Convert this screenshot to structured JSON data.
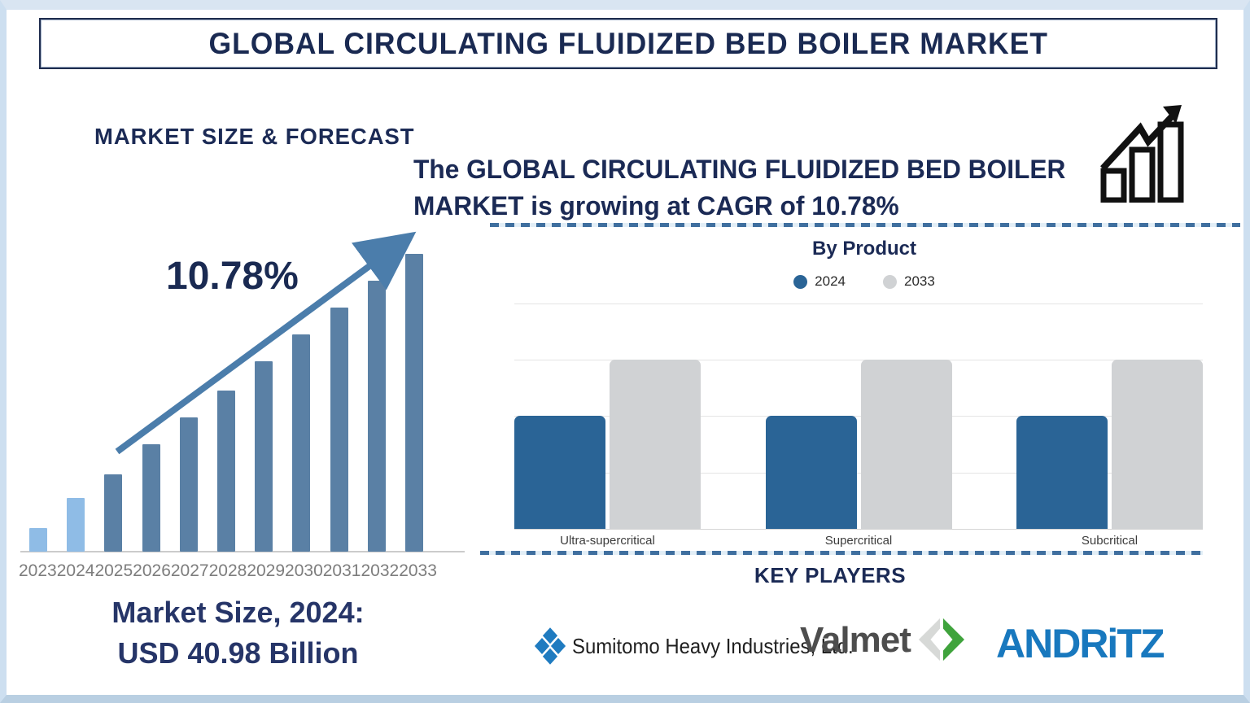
{
  "page": {
    "title": "GLOBAL CIRCULATING FLUIDIZED BED BOILER MARKET",
    "colors": {
      "navy": "#1b2a55",
      "frame_blue": "#cddff0",
      "dash_blue": "#3f6f9f"
    }
  },
  "left_panel": {
    "heading": "MARKET SIZE & FORECAST",
    "cagr_annotation": "10.78%",
    "market_size_label": "Market Size, 2024:",
    "market_size_value": "USD 40.98 Billion"
  },
  "right_panel": {
    "growth_statement": "The GLOBAL CIRCULATING FLUIDIZED BED BOILER MARKET is growing at CAGR of 10.78%",
    "growth_icon": "bar-chart-rising-arrow-icon"
  },
  "key_players": {
    "heading": "KEY PLAYERS",
    "companies": [
      {
        "name": "Sumitomo Heavy Industries, Ltd.",
        "icon": "sumitomo-igeta-diamond-icon",
        "brand_color": "#1f7bc0"
      },
      {
        "name": "Valmet",
        "icon": "valmet-diamond-arrow-icon",
        "text_color": "#4d4d4d",
        "green": "#3fa33c",
        "gray": "#d7d9d7"
      },
      {
        "name": "ANDRITZ",
        "display": "ANDRiTZ",
        "brand_color": "#1878be"
      }
    ]
  },
  "chart_data": [
    {
      "type": "bar",
      "title": "MARKET SIZE & FORECAST",
      "categories": [
        "2023",
        "2024",
        "2025",
        "2026",
        "2027",
        "2028",
        "2029",
        "2030",
        "2031",
        "2032",
        "2033"
      ],
      "values_pct_of_max": [
        8,
        18,
        26,
        36,
        45,
        54,
        64,
        73,
        82,
        91,
        100
      ],
      "historical_years": [
        "2023",
        "2024"
      ],
      "colors": {
        "historical": "#8fbce6",
        "forecast": "#5a80a5",
        "trend_arrow": "#4b7dab"
      },
      "annotation": "10.78%",
      "note": "Market Size, 2024: USD 40.98 Billion",
      "xlabel": "",
      "ylabel": "",
      "grid": false,
      "legend_position": "none"
    },
    {
      "type": "bar",
      "title": "By Product",
      "categories": [
        "Ultra-supercritical",
        "Supercritical",
        "Subcritical"
      ],
      "series": [
        {
          "name": "2024",
          "color": "#2a6496",
          "values_pct": [
            50,
            50,
            50
          ]
        },
        {
          "name": "2033",
          "color": "#d0d2d4",
          "values_pct": [
            75,
            75,
            75
          ]
        }
      ],
      "ylim": [
        0,
        100
      ],
      "grid": true,
      "legend_position": "top",
      "gridline_color": "#e4e4e4"
    }
  ]
}
